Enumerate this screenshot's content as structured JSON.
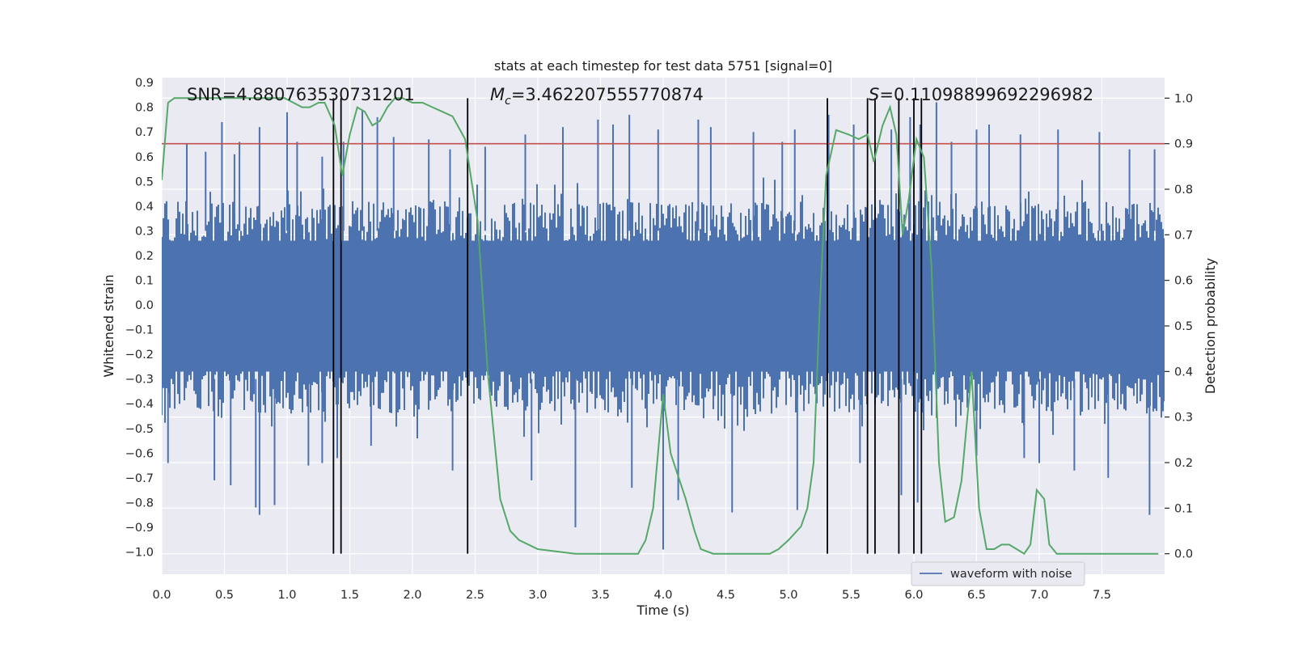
{
  "chart_data": {
    "type": "line",
    "title": "stats at each timestep for test data 5751 [signal=0]",
    "xlabel": "Time (s)",
    "ylabel": "Whitened strain",
    "y2label": "Detection probability",
    "xlim": [
      0.0,
      8.0
    ],
    "ylim": [
      -1.09,
      0.92
    ],
    "y2lim": [
      -0.045,
      1.045
    ],
    "xticks": [
      0.0,
      0.5,
      1.0,
      1.5,
      2.0,
      2.5,
      3.0,
      3.5,
      4.0,
      4.5,
      5.0,
      5.5,
      6.0,
      6.5,
      7.0,
      7.5
    ],
    "xtick_labels": [
      "0.0",
      "0.5",
      "1.0",
      "1.5",
      "2.0",
      "2.5",
      "3.0",
      "3.5",
      "4.0",
      "4.5",
      "5.0",
      "5.5",
      "6.0",
      "6.5",
      "7.0",
      "7.5"
    ],
    "yticks": [
      0.9,
      0.8,
      0.7,
      0.6,
      0.5,
      0.4,
      0.3,
      0.2,
      0.1,
      0.0,
      -0.1,
      -0.2,
      -0.3,
      -0.4,
      -0.5,
      -0.6,
      -0.7,
      -0.8,
      -0.9,
      -1.0
    ],
    "ytick_labels": [
      "0.9",
      "0.8",
      "0.7",
      "0.6",
      "0.5",
      "0.4",
      "0.3",
      "0.2",
      "0.1",
      "0.0",
      "−0.1",
      "−0.2",
      "−0.3",
      "−0.4",
      "−0.5",
      "−0.6",
      "−0.7",
      "−0.8",
      "−0.9",
      "−1.0"
    ],
    "y2ticks": [
      1.0,
      0.9,
      0.8,
      0.7,
      0.6,
      0.5,
      0.4,
      0.3,
      0.2,
      0.1,
      0.0
    ],
    "y2tick_labels": [
      "1.0",
      "0.9",
      "0.8",
      "0.7",
      "0.6",
      "0.5",
      "0.4",
      "0.3",
      "0.2",
      "0.1",
      "0.0"
    ],
    "grid": true,
    "annotations": {
      "snr": "SNR=4.880763530731201",
      "mc_symbol": "M",
      "mc_sub": "c",
      "mc_value": "=3.462207555770874",
      "s_symbol": "S",
      "s_value": "=0.11098899692296982"
    },
    "threshold": 0.9,
    "vlines": [
      1.37,
      1.43,
      2.44,
      5.31,
      5.63,
      5.69,
      5.88,
      6.0,
      6.06
    ],
    "waveform": {
      "name": "waveform with noise",
      "envelope_upper": 0.42,
      "envelope_lower": -0.44,
      "spikes_up": [
        [
          0.2,
          0.65
        ],
        [
          0.35,
          0.62
        ],
        [
          0.48,
          0.74
        ],
        [
          0.58,
          0.61
        ],
        [
          0.62,
          0.66
        ],
        [
          0.78,
          0.72
        ],
        [
          1.0,
          0.78
        ],
        [
          1.08,
          0.66
        ],
        [
          1.28,
          0.6
        ],
        [
          1.45,
          0.66
        ],
        [
          1.6,
          0.79
        ],
        [
          1.72,
          0.76
        ],
        [
          1.85,
          0.68
        ],
        [
          2.13,
          0.67
        ],
        [
          2.3,
          0.63
        ],
        [
          2.58,
          0.64
        ],
        [
          2.9,
          0.69
        ],
        [
          3.2,
          0.72
        ],
        [
          3.48,
          0.75
        ],
        [
          3.6,
          0.73
        ],
        [
          3.73,
          0.77
        ],
        [
          3.96,
          0.71
        ],
        [
          4.28,
          0.75
        ],
        [
          4.38,
          0.72
        ],
        [
          4.72,
          0.7
        ],
        [
          4.95,
          0.66
        ],
        [
          5.05,
          0.71
        ],
        [
          5.32,
          0.77
        ],
        [
          5.52,
          0.73
        ],
        [
          5.82,
          0.71
        ],
        [
          5.97,
          0.76
        ],
        [
          6.05,
          0.73
        ],
        [
          6.18,
          0.82
        ],
        [
          6.3,
          0.66
        ],
        [
          6.5,
          0.71
        ],
        [
          6.6,
          0.73
        ],
        [
          6.85,
          0.69
        ],
        [
          7.15,
          0.71
        ],
        [
          7.48,
          0.7
        ],
        [
          7.72,
          0.63
        ],
        [
          7.92,
          0.63
        ]
      ],
      "spikes_down": [
        [
          0.05,
          -0.64
        ],
        [
          0.42,
          -0.71
        ],
        [
          0.55,
          -0.73
        ],
        [
          0.75,
          -0.82
        ],
        [
          0.78,
          -0.85
        ],
        [
          0.9,
          -0.81
        ],
        [
          1.17,
          -0.65
        ],
        [
          1.28,
          -0.64
        ],
        [
          1.4,
          -0.62
        ],
        [
          1.67,
          -0.57
        ],
        [
          2.32,
          -0.67
        ],
        [
          2.95,
          -0.71
        ],
        [
          3.3,
          -0.9
        ],
        [
          3.75,
          -0.74
        ],
        [
          4.0,
          -0.99
        ],
        [
          4.12,
          -0.79
        ],
        [
          4.55,
          -0.84
        ],
        [
          5.07,
          -0.83
        ],
        [
          5.57,
          -0.64
        ],
        [
          5.9,
          -0.77
        ],
        [
          6.03,
          -0.8
        ],
        [
          6.5,
          -0.61
        ],
        [
          6.88,
          -0.62
        ],
        [
          7.0,
          -0.64
        ],
        [
          7.28,
          -0.67
        ],
        [
          7.55,
          -0.7
        ],
        [
          7.88,
          -0.85
        ]
      ]
    },
    "detection_probability": {
      "name": "detection probability",
      "x": [
        0.0,
        0.05,
        0.1,
        0.2,
        0.4,
        0.6,
        0.8,
        0.98,
        1.05,
        1.12,
        1.18,
        1.25,
        1.3,
        1.38,
        1.44,
        1.5,
        1.56,
        1.62,
        1.68,
        1.74,
        1.8,
        1.86,
        1.92,
        2.0,
        2.08,
        2.16,
        2.24,
        2.32,
        2.42,
        2.52,
        2.6,
        2.7,
        2.78,
        2.85,
        3.0,
        3.3,
        3.6,
        3.8,
        3.86,
        3.92,
        4.0,
        4.06,
        4.12,
        4.18,
        4.25,
        4.3,
        4.4,
        4.55,
        4.7,
        4.85,
        4.92,
        5.0,
        5.1,
        5.15,
        5.2,
        5.25,
        5.3,
        5.38,
        5.48,
        5.56,
        5.63,
        5.68,
        5.75,
        5.81,
        5.86,
        5.91,
        5.96,
        6.02,
        6.08,
        6.14,
        6.2,
        6.25,
        6.32,
        6.38,
        6.46,
        6.52,
        6.58,
        6.64,
        6.7,
        6.76,
        6.82,
        6.88,
        6.93,
        6.98,
        7.04,
        7.08,
        7.14,
        7.2,
        7.3,
        7.45,
        7.6,
        7.8,
        7.95
      ],
      "y": [
        0.82,
        0.99,
        1.0,
        1.0,
        1.0,
        1.0,
        1.0,
        1.0,
        0.99,
        0.98,
        0.98,
        0.99,
        0.99,
        0.94,
        0.83,
        0.92,
        0.98,
        0.97,
        0.94,
        0.95,
        0.98,
        1.0,
        1.0,
        0.99,
        0.99,
        0.98,
        0.97,
        0.96,
        0.91,
        0.73,
        0.4,
        0.12,
        0.05,
        0.03,
        0.01,
        0.0,
        0.0,
        0.0,
        0.03,
        0.1,
        0.35,
        0.22,
        0.17,
        0.12,
        0.05,
        0.01,
        0.0,
        0.0,
        0.0,
        0.0,
        0.01,
        0.03,
        0.06,
        0.1,
        0.2,
        0.55,
        0.83,
        0.93,
        0.92,
        0.91,
        0.92,
        0.86,
        0.94,
        0.98,
        0.92,
        0.7,
        0.78,
        0.91,
        0.87,
        0.63,
        0.2,
        0.07,
        0.08,
        0.16,
        0.4,
        0.1,
        0.01,
        0.01,
        0.02,
        0.02,
        0.01,
        0.0,
        0.02,
        0.14,
        0.12,
        0.02,
        0.0,
        0.0,
        0.0,
        0.0,
        0.0,
        0.0,
        0.0
      ]
    },
    "colors": {
      "background": "#eaeaf2",
      "grid": "#ffffff",
      "waveform": "#4c72b0",
      "probability": "#55a868",
      "threshold": "#c44e52",
      "vlines": "#000000"
    }
  }
}
